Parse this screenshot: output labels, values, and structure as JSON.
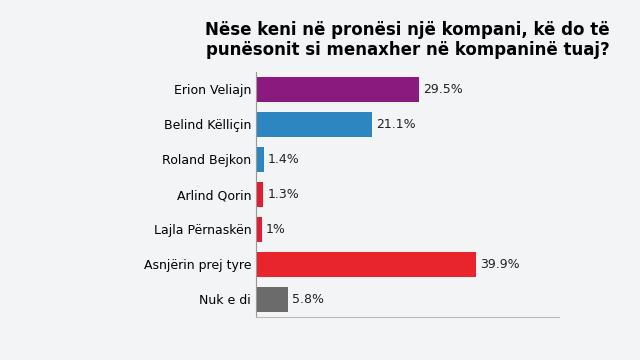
{
  "chart_data": {
    "type": "bar",
    "orientation": "horizontal",
    "title": "Nëse keni në pronësi një kompani, kë do të punësonit si menaxher në kompaninë tuaj?",
    "categories": [
      "Erion Veliajn",
      "Belind Këlliçin",
      "Roland Bejkon",
      "Arlind Qorin",
      "Lajla Përnaskën",
      "Asnjërin prej tyre",
      "Nuk e di"
    ],
    "values": [
      29.5,
      21.1,
      1.4,
      1.3,
      1,
      39.9,
      5.8
    ],
    "value_labels": [
      "29.5%",
      "21.1%",
      "1.4%",
      "1.3%",
      "1%",
      "39.9%",
      "5.8%"
    ],
    "colors": [
      "#8b1a7e",
      "#2e86c1",
      "#2e86c1",
      "#e02030",
      "#e02030",
      "#e8252c",
      "#6b6b6b"
    ],
    "xlim": [
      0,
      55
    ],
    "xticks": [],
    "data_labels": true,
    "tick_labels": "y",
    "grid": false
  }
}
